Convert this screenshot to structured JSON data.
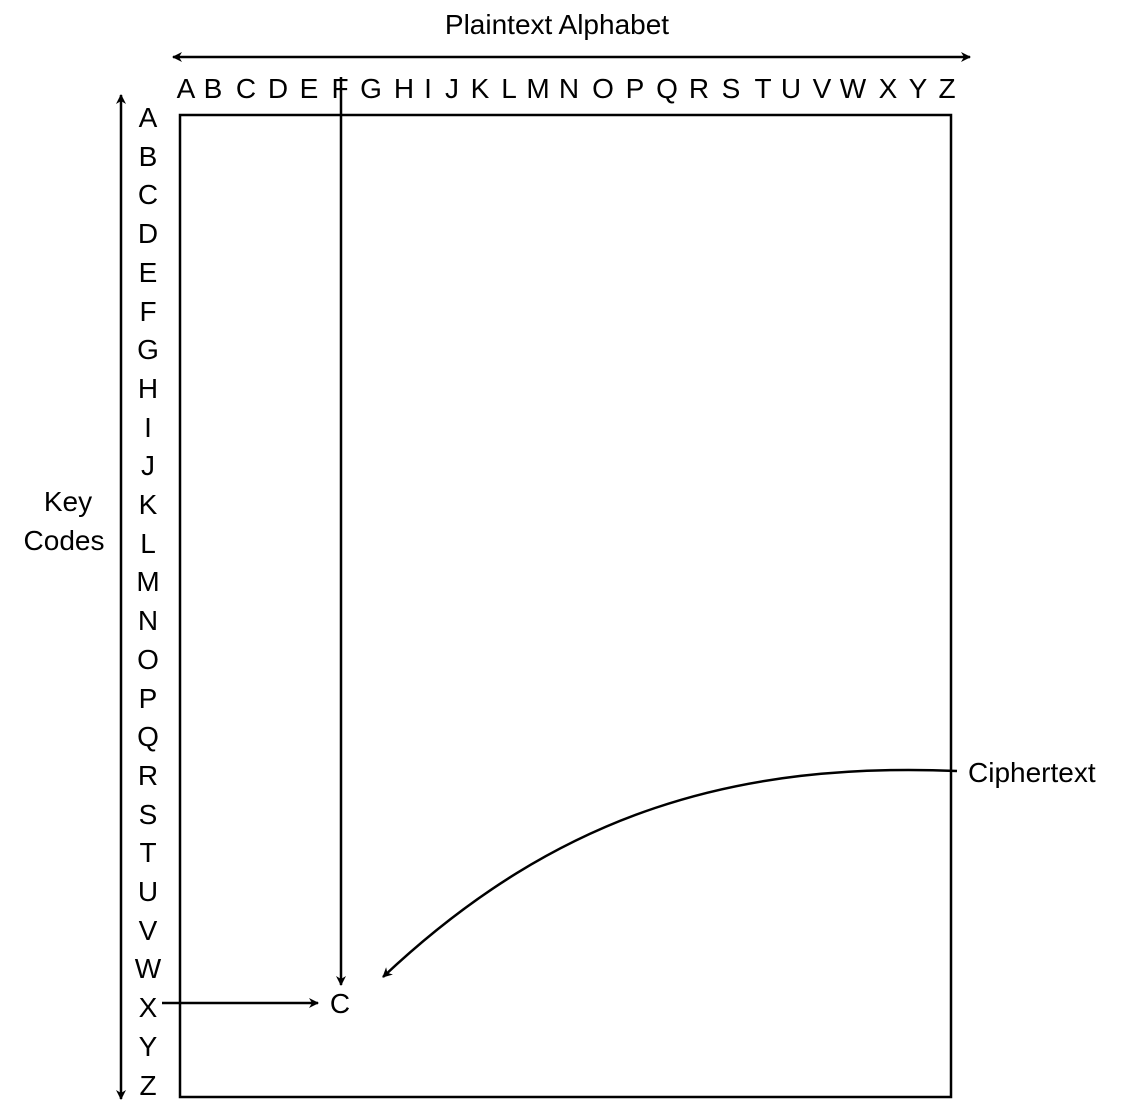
{
  "title": "Plaintext Alphabet",
  "plaintext_letters": [
    "A",
    "B",
    "C",
    "D",
    "E",
    "F",
    "G",
    "H",
    "I",
    "J",
    "K",
    "L",
    "M",
    "N",
    "O",
    "P",
    "Q",
    "R",
    "S",
    "T",
    "U",
    "V",
    "W",
    "X",
    "Y",
    "Z"
  ],
  "key_codes_label": [
    "Key",
    "Codes"
  ],
  "key_letters": [
    "A",
    "B",
    "C",
    "D",
    "E",
    "F",
    "G",
    "H",
    "I",
    "J",
    "K",
    "L",
    "M",
    "N",
    "O",
    "P",
    "Q",
    "R",
    "S",
    "T",
    "U",
    "V",
    "W",
    "X",
    "Y",
    "Z"
  ],
  "example": {
    "plaintext_letter": "F",
    "key_letter": "X",
    "result_letter": "C"
  },
  "ciphertext_label": "Ciphertext",
  "colors": {
    "ink": "#000000",
    "background": "#ffffff"
  }
}
